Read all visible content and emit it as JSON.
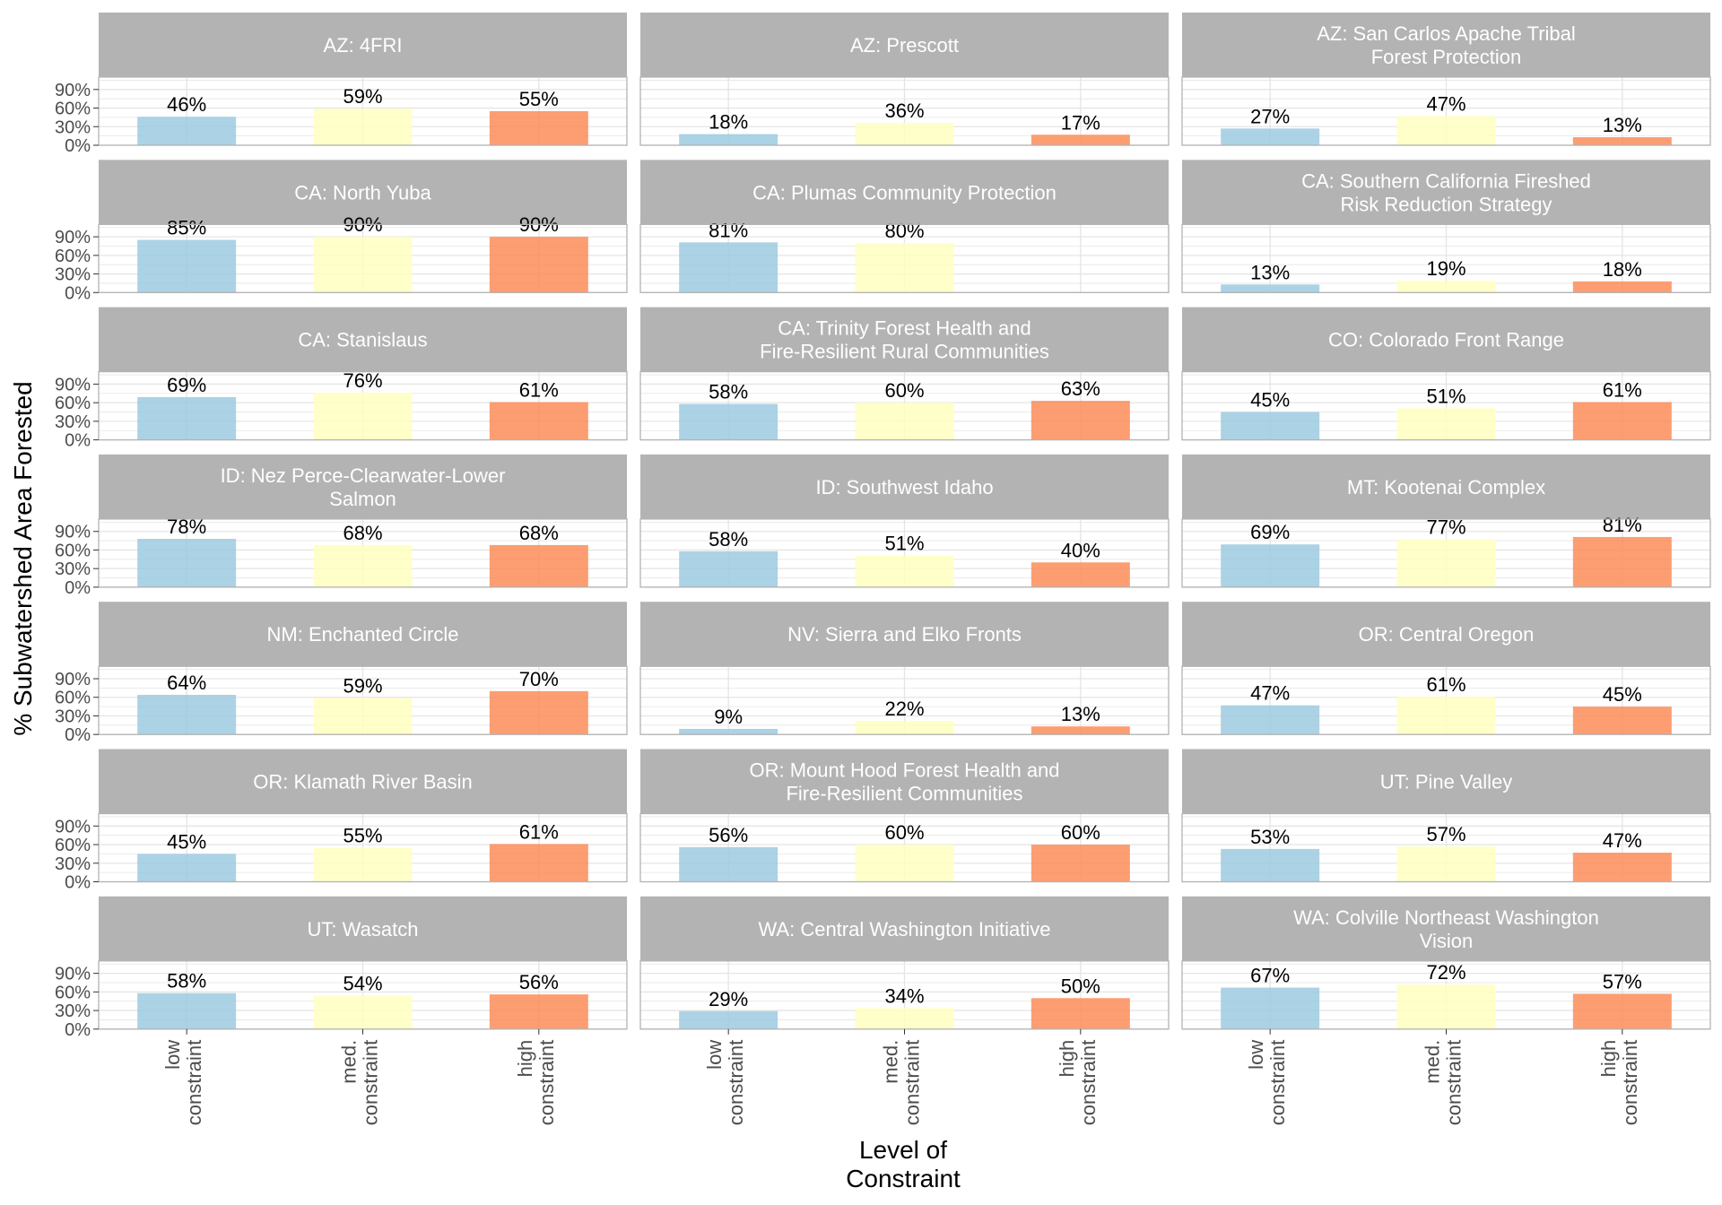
{
  "chart_data": {
    "type": "bar",
    "xlabel": [
      "Level of",
      "Constraint"
    ],
    "ylabel": "% Subwatershed Area Forested",
    "categories": [
      [
        "low",
        "constraint"
      ],
      [
        "med.",
        "constraint"
      ],
      [
        "high",
        "constraint"
      ]
    ],
    "y_ticks": [
      "0%",
      "30%",
      "60%",
      "90%"
    ],
    "ylim": [
      0,
      110
    ],
    "grid": true,
    "colors": {
      "low": "#9ecae1",
      "med": "#ffffbf",
      "high": "#fc8d59",
      "strip": "#b3b3b3",
      "grid": "#e5e5e5",
      "border": "#b3b3b3"
    },
    "panels": [
      {
        "title": [
          "AZ: 4FRI"
        ],
        "values": [
          46,
          59,
          55
        ],
        "labels": [
          "46%",
          "59%",
          "55%"
        ]
      },
      {
        "title": [
          "AZ: Prescott"
        ],
        "values": [
          18,
          36,
          17
        ],
        "labels": [
          "18%",
          "36%",
          "17%"
        ]
      },
      {
        "title": [
          "AZ: San Carlos Apache Tribal",
          "Forest Protection"
        ],
        "values": [
          27,
          47,
          13
        ],
        "labels": [
          "27%",
          "47%",
          "13%"
        ]
      },
      {
        "title": [
          "CA: North Yuba"
        ],
        "values": [
          85,
          90,
          90
        ],
        "labels": [
          "85%",
          "90%",
          "90%"
        ]
      },
      {
        "title": [
          "CA: Plumas Community Protection"
        ],
        "values": [
          81,
          80,
          null
        ],
        "labels": [
          "81%",
          "80%",
          ""
        ]
      },
      {
        "title": [
          "CA: Southern California Fireshed",
          "Risk Reduction Strategy"
        ],
        "values": [
          13,
          19,
          18
        ],
        "labels": [
          "13%",
          "19%",
          "18%"
        ]
      },
      {
        "title": [
          "CA: Stanislaus"
        ],
        "values": [
          69,
          76,
          61
        ],
        "labels": [
          "69%",
          "76%",
          "61%"
        ]
      },
      {
        "title": [
          "CA: Trinity Forest Health and",
          "Fire-Resilient Rural Communities"
        ],
        "values": [
          58,
          60,
          63
        ],
        "labels": [
          "58%",
          "60%",
          "63%"
        ]
      },
      {
        "title": [
          "CO: Colorado Front Range"
        ],
        "values": [
          45,
          51,
          61
        ],
        "labels": [
          "45%",
          "51%",
          "61%"
        ]
      },
      {
        "title": [
          "ID: Nez Perce-Clearwater-Lower",
          "Salmon"
        ],
        "values": [
          78,
          68,
          68
        ],
        "labels": [
          "78%",
          "68%",
          "68%"
        ]
      },
      {
        "title": [
          "ID: Southwest Idaho"
        ],
        "values": [
          58,
          51,
          40
        ],
        "labels": [
          "58%",
          "51%",
          "40%"
        ]
      },
      {
        "title": [
          "MT: Kootenai Complex"
        ],
        "values": [
          69,
          77,
          81
        ],
        "labels": [
          "69%",
          "77%",
          "81%"
        ]
      },
      {
        "title": [
          "NM: Enchanted Circle"
        ],
        "values": [
          64,
          59,
          70
        ],
        "labels": [
          "64%",
          "59%",
          "70%"
        ]
      },
      {
        "title": [
          "NV: Sierra and Elko Fronts"
        ],
        "values": [
          9,
          22,
          13
        ],
        "labels": [
          "9%",
          "22%",
          "13%"
        ]
      },
      {
        "title": [
          "OR: Central Oregon"
        ],
        "values": [
          47,
          61,
          45
        ],
        "labels": [
          "47%",
          "61%",
          "45%"
        ]
      },
      {
        "title": [
          "OR: Klamath River Basin"
        ],
        "values": [
          45,
          55,
          61
        ],
        "labels": [
          "45%",
          "55%",
          "61%"
        ]
      },
      {
        "title": [
          "OR: Mount Hood Forest Health and",
          "Fire-Resilient Communities"
        ],
        "values": [
          56,
          60,
          60
        ],
        "labels": [
          "56%",
          "60%",
          "60%"
        ]
      },
      {
        "title": [
          "UT: Pine Valley"
        ],
        "values": [
          53,
          57,
          47
        ],
        "labels": [
          "53%",
          "57%",
          "47%"
        ]
      },
      {
        "title": [
          "UT: Wasatch"
        ],
        "values": [
          58,
          54,
          56
        ],
        "labels": [
          "58%",
          "54%",
          "56%"
        ]
      },
      {
        "title": [
          "WA: Central Washington Initiative"
        ],
        "values": [
          29,
          34,
          50
        ],
        "labels": [
          "29%",
          "34%",
          "50%"
        ]
      },
      {
        "title": [
          "WA: Colville Northeast Washington",
          "Vision"
        ],
        "values": [
          67,
          72,
          57
        ],
        "labels": [
          "67%",
          "72%",
          "57%"
        ]
      }
    ]
  }
}
